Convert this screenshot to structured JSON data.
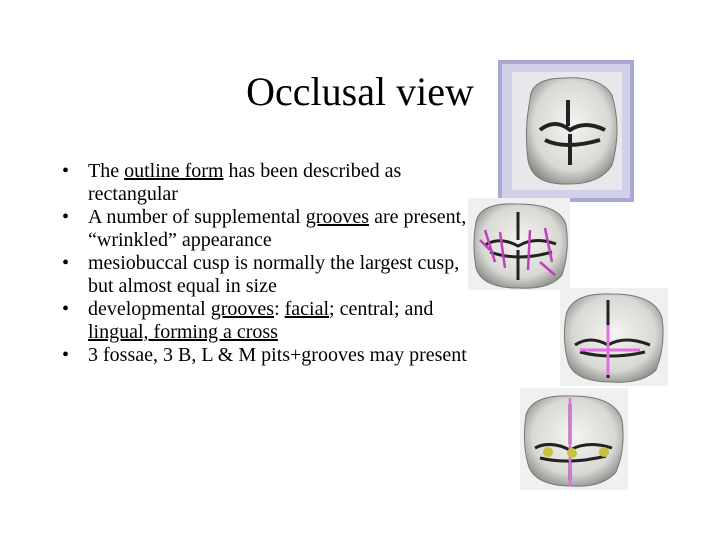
{
  "title": "Occlusal view",
  "bullets": [
    [
      {
        "text": "The "
      },
      {
        "text": "outline form",
        "underline": true
      },
      {
        "text": " has been described as rectangular"
      }
    ],
    [
      {
        "text": "A number of supplemental "
      },
      {
        "text": "grooves",
        "underline": true
      },
      {
        "text": " are present, “wrinkled” appearance"
      }
    ],
    [
      {
        "text": "mesiobuccal cusp is normally the largest cusp, but almost equal in size"
      }
    ],
    [
      {
        "text": "developmental "
      },
      {
        "text": "grooves",
        "underline": true
      },
      {
        "text": ": "
      },
      {
        "text": "facial",
        "underline": true
      },
      {
        "text": "; central; and "
      },
      {
        "text": "lingual, forming a cross",
        "underline": true
      }
    ],
    [
      {
        "text": "3 fossae, 3 B, L & M pits+grooves may present"
      }
    ]
  ]
}
